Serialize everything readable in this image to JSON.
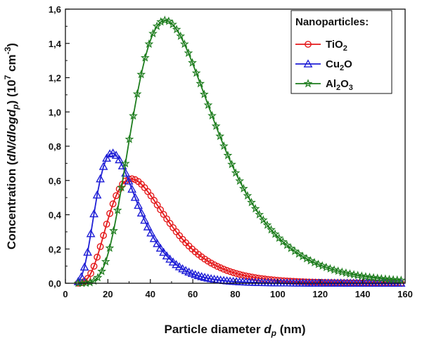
{
  "chart_data": {
    "type": "line",
    "xlim": [
      0,
      160
    ],
    "ylim": [
      0,
      1.6
    ],
    "x_ticks": [
      0,
      20,
      40,
      60,
      80,
      100,
      120,
      140,
      160
    ],
    "x_tick_labels": [
      "0",
      "20",
      "40",
      "60",
      "80",
      "100",
      "120",
      "140",
      "160"
    ],
    "y_ticks": [
      0,
      0.2,
      0.4,
      0.6,
      0.8,
      1.0,
      1.2,
      1.4,
      1.6
    ],
    "y_tick_labels": [
      "0,0",
      "0,2",
      "0,4",
      "0,6",
      "0,8",
      "1,0",
      "1,2",
      "1,4",
      "1,6"
    ],
    "xlabel": {
      "main": "Particle diameter ",
      "var": "d",
      "sub": "p",
      "unit": " (nm)"
    },
    "ylabel": {
      "pre": "Concentration (",
      "expr": "dN/dlogd",
      "sub": "p",
      "mid": ") (10",
      "sup1": "7",
      "unit": " cm",
      "sup2": "-3",
      "close": ")"
    },
    "legend": {
      "title": "Nanoparticles:",
      "position": "top-right"
    },
    "series": [
      {
        "name": "TiO2",
        "label_parts": [
          "TiO",
          "2"
        ],
        "color": "#e41a1c",
        "marker": "circle",
        "peak_x": 31,
        "peak_y": 0.61,
        "sigma_g": 1.55
      },
      {
        "name": "Cu2O",
        "label_parts": [
          "Cu",
          "2",
          "O"
        ],
        "color": "#1f1fd6",
        "marker": "triangle",
        "peak_x": 22,
        "peak_y": 0.76,
        "sigma_g": 1.55
      },
      {
        "name": "Al2O3",
        "label_parts": [
          "Al",
          "2",
          "O",
          "3"
        ],
        "color": "#1e7d1e",
        "marker": "star",
        "peak_x": 47,
        "peak_y": 1.535,
        "sigma_g": 1.5
      }
    ]
  }
}
